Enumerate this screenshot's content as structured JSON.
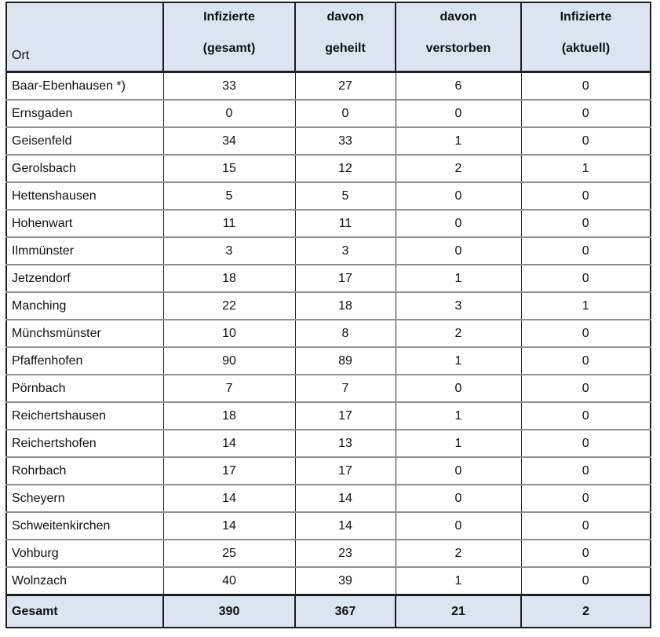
{
  "colors": {
    "header_bg": "#dbe5f1",
    "total_row_bg": "#dbe5f1",
    "outer_border": "#1f1f1f",
    "row_separator": "#8f8f8f",
    "text": "#111111"
  },
  "table": {
    "header": {
      "ort": "Ort",
      "col_gesamt": {
        "line1": "Infizierte",
        "line2": "(gesamt)"
      },
      "col_geheilt": {
        "line1": "davon",
        "line2": "geheilt"
      },
      "col_verstorben": {
        "line1": "davon",
        "line2": "verstorben"
      },
      "col_aktuell": {
        "line1": "Infizierte",
        "line2": "(aktuell)"
      }
    },
    "rows": [
      {
        "ort": "Baar-Ebenhausen *)",
        "gesamt": "33",
        "geheilt": "27",
        "verstorben": "6",
        "aktuell": "0"
      },
      {
        "ort": "Ernsgaden",
        "gesamt": "0",
        "geheilt": "0",
        "verstorben": "0",
        "aktuell": "0"
      },
      {
        "ort": "Geisenfeld",
        "gesamt": "34",
        "geheilt": "33",
        "verstorben": "1",
        "aktuell": "0"
      },
      {
        "ort": "Gerolsbach",
        "gesamt": "15",
        "geheilt": "12",
        "verstorben": "2",
        "aktuell": "1"
      },
      {
        "ort": "Hettenshausen",
        "gesamt": "5",
        "geheilt": "5",
        "verstorben": "0",
        "aktuell": "0"
      },
      {
        "ort": "Hohenwart",
        "gesamt": "11",
        "geheilt": "11",
        "verstorben": "0",
        "aktuell": "0"
      },
      {
        "ort": "Ilmmünster",
        "gesamt": "3",
        "geheilt": "3",
        "verstorben": "0",
        "aktuell": "0"
      },
      {
        "ort": "Jetzendorf",
        "gesamt": "18",
        "geheilt": "17",
        "verstorben": "1",
        "aktuell": "0"
      },
      {
        "ort": "Manching",
        "gesamt": "22",
        "geheilt": "18",
        "verstorben": "3",
        "aktuell": "1"
      },
      {
        "ort": "Münchsmünster",
        "gesamt": "10",
        "geheilt": "8",
        "verstorben": "2",
        "aktuell": "0"
      },
      {
        "ort": "Pfaffenhofen",
        "gesamt": "90",
        "geheilt": "89",
        "verstorben": "1",
        "aktuell": "0"
      },
      {
        "ort": "Pörnbach",
        "gesamt": "7",
        "geheilt": "7",
        "verstorben": "0",
        "aktuell": "0"
      },
      {
        "ort": "Reichertshausen",
        "gesamt": "18",
        "geheilt": "17",
        "verstorben": "1",
        "aktuell": "0"
      },
      {
        "ort": "Reichertshofen",
        "gesamt": "14",
        "geheilt": "13",
        "verstorben": "1",
        "aktuell": "0"
      },
      {
        "ort": "Rohrbach",
        "gesamt": "17",
        "geheilt": "17",
        "verstorben": "0",
        "aktuell": "0"
      },
      {
        "ort": "Scheyern",
        "gesamt": "14",
        "geheilt": "14",
        "verstorben": "0",
        "aktuell": "0"
      },
      {
        "ort": "Schweitenkirchen",
        "gesamt": "14",
        "geheilt": "14",
        "verstorben": "0",
        "aktuell": "0"
      },
      {
        "ort": "Vohburg",
        "gesamt": "25",
        "geheilt": "23",
        "verstorben": "2",
        "aktuell": "0"
      },
      {
        "ort": "Wolnzach",
        "gesamt": "40",
        "geheilt": "39",
        "verstorben": "1",
        "aktuell": "0"
      }
    ],
    "total": {
      "ort": "Gesamt",
      "gesamt": "390",
      "geheilt": "367",
      "verstorben": "21",
      "aktuell": "2"
    }
  }
}
